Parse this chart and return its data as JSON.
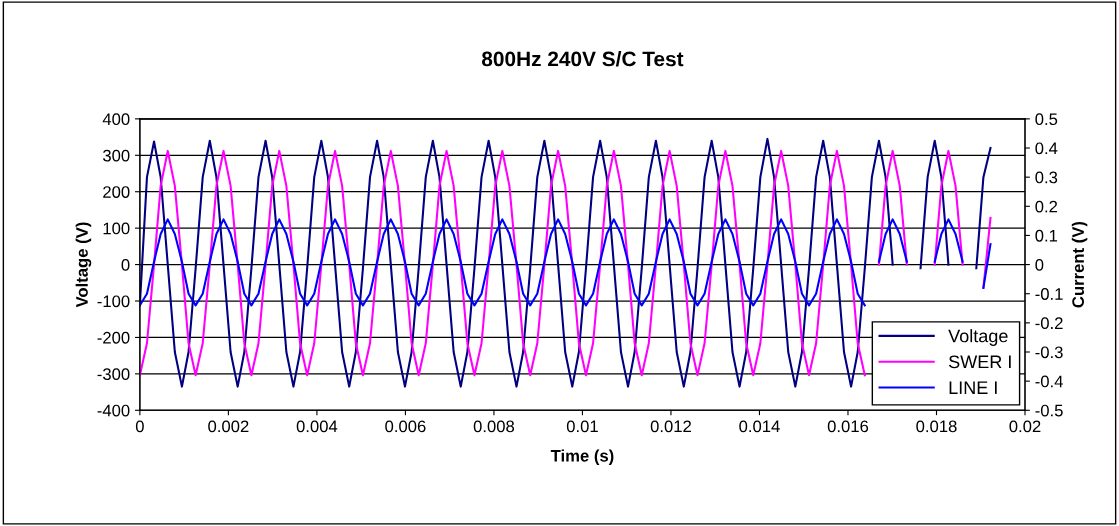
{
  "chart_data": {
    "type": "line",
    "title": "800Hz 240V S/C Test",
    "xlabel": "Time (s)",
    "ylabel": "Voltage (V)",
    "y2label": "Current (V)",
    "x": [
      0,
      0.00016,
      0.00032,
      0.00047,
      0.00063,
      0.00079,
      0.00095,
      0.0011,
      0.00126,
      0.00142,
      0.00158,
      0.00173,
      0.00189,
      0.00205,
      0.00221,
      0.00236,
      0.00252,
      0.00268,
      0.00284,
      0.00299,
      0.00315,
      0.00331,
      0.00347,
      0.00362,
      0.00378,
      0.00394,
      0.0041,
      0.00425,
      0.00441,
      0.00457,
      0.00473,
      0.00488,
      0.00504,
      0.0052,
      0.00536,
      0.00551,
      0.00567,
      0.00583,
      0.00599,
      0.00614,
      0.0063,
      0.00646,
      0.00662,
      0.00677,
      0.00693,
      0.00709,
      0.00725,
      0.0074,
      0.00756,
      0.00772,
      0.00788,
      0.00803,
      0.00819,
      0.00835,
      0.00851,
      0.00866,
      0.00882,
      0.00898,
      0.00914,
      0.00929,
      0.00945,
      0.00961,
      0.00977,
      0.00992,
      0.01008,
      0.01024,
      0.0104,
      0.01055,
      0.01071,
      0.01087,
      0.01103,
      0.01118,
      0.01134,
      0.0115,
      0.01166,
      0.01181,
      0.01197,
      0.01213,
      0.01229,
      0.01244,
      0.0126,
      0.01276,
      0.01292,
      0.01307,
      0.01323,
      0.01339,
      0.01355,
      0.0137,
      0.01386,
      0.01402,
      0.01418,
      0.01433,
      0.01449,
      0.01465,
      0.01481,
      0.01496,
      0.01512,
      0.01528,
      0.01544,
      0.01559,
      0.01575,
      0.01591,
      0.01607,
      0.01622,
      0.01638,
      0.01654,
      0.0167,
      0.01685,
      0.01701,
      0.01717,
      0.01733,
      0.01748,
      0.01764,
      0.0178,
      0.01796,
      0.01811,
      0.01827,
      0.01843,
      0.01859,
      0.01874,
      0.0189,
      0.01906,
      0.01922
    ],
    "series": [
      {
        "name": "Voltage",
        "color": "#000080",
        "values": [
          -110,
          240,
          338,
          240,
          0,
          -240,
          -335,
          -240,
          -10,
          240,
          340,
          240,
          0,
          -240,
          -335,
          -240,
          -10,
          240,
          340,
          240,
          0,
          -240,
          -335,
          -240,
          -10,
          240,
          340,
          240,
          0,
          -240,
          -335,
          -240,
          -10,
          240,
          340,
          240,
          0,
          -240,
          -335,
          -240,
          -10,
          240,
          340,
          240,
          0,
          -240,
          -335,
          -240,
          -10,
          240,
          340,
          240,
          0,
          -240,
          -335,
          -240,
          -10,
          240,
          340,
          240,
          0,
          -240,
          -335,
          -240,
          -10,
          240,
          340,
          240,
          0,
          -240,
          -335,
          -240,
          -10,
          240,
          340,
          240,
          0,
          -240,
          -335,
          -240,
          -10,
          240,
          340,
          240,
          0,
          -240,
          -335,
          -240,
          -10,
          240,
          345,
          240,
          0,
          -240,
          -335,
          -240,
          -10,
          240,
          340,
          240,
          0,
          -240,
          -335,
          -240,
          -10,
          240,
          340,
          240,
          0,
          null,
          null,
          null,
          -10,
          240,
          340,
          240,
          0,
          null,
          null,
          null,
          -10,
          240,
          320
        ]
      },
      {
        "name": "SWER I",
        "color": "#ff00ff",
        "axis": "y2",
        "values": [
          -0.38,
          -0.27,
          0,
          0.27,
          0.39,
          0.27,
          0,
          -0.27,
          -0.38,
          -0.27,
          0,
          0.27,
          0.39,
          0.27,
          0,
          -0.27,
          -0.38,
          -0.27,
          0,
          0.27,
          0.39,
          0.27,
          0,
          -0.27,
          -0.38,
          -0.27,
          0,
          0.27,
          0.39,
          0.27,
          0,
          -0.27,
          -0.38,
          -0.27,
          0,
          0.27,
          0.39,
          0.27,
          0,
          -0.27,
          -0.38,
          -0.27,
          0,
          0.27,
          0.39,
          0.27,
          0,
          -0.27,
          -0.38,
          -0.27,
          0,
          0.27,
          0.39,
          0.27,
          0,
          -0.27,
          -0.38,
          -0.27,
          0,
          0.27,
          0.39,
          0.27,
          0,
          -0.27,
          -0.38,
          -0.27,
          0,
          0.27,
          0.39,
          0.27,
          0,
          -0.27,
          -0.38,
          -0.27,
          0,
          0.27,
          0.39,
          0.27,
          0,
          -0.27,
          -0.38,
          -0.27,
          0,
          0.27,
          0.39,
          0.27,
          0,
          -0.27,
          -0.38,
          -0.27,
          0,
          0.27,
          0.39,
          0.27,
          0,
          -0.27,
          -0.38,
          -0.27,
          0,
          0.27,
          0.39,
          0.27,
          0,
          -0.27,
          -0.38,
          null,
          0,
          0.27,
          0.39,
          0.27,
          0,
          null,
          null,
          null,
          0,
          0.27,
          0.39,
          0.27,
          0,
          null,
          null,
          -0.08,
          0.16
        ]
      },
      {
        "name": "LINE I",
        "color": "#0000ff",
        "axis": "y2",
        "values": [
          -0.14,
          -0.1,
          0.01,
          0.105,
          0.155,
          0.105,
          0.01,
          -0.1,
          -0.14,
          -0.1,
          0.01,
          0.105,
          0.155,
          0.105,
          0.01,
          -0.1,
          -0.14,
          -0.1,
          0.01,
          0.105,
          0.155,
          0.105,
          0.01,
          -0.1,
          -0.14,
          -0.1,
          0.01,
          0.105,
          0.155,
          0.105,
          0.01,
          -0.1,
          -0.14,
          -0.1,
          0.01,
          0.105,
          0.155,
          0.105,
          0.01,
          -0.1,
          -0.14,
          -0.1,
          0.01,
          0.105,
          0.155,
          0.105,
          0.01,
          -0.1,
          -0.14,
          -0.1,
          0.01,
          0.105,
          0.155,
          0.105,
          0.01,
          -0.1,
          -0.14,
          -0.1,
          0.01,
          0.105,
          0.155,
          0.105,
          0.01,
          -0.1,
          -0.14,
          -0.1,
          0.01,
          0.105,
          0.155,
          0.105,
          0.01,
          -0.1,
          -0.14,
          -0.1,
          0.01,
          0.105,
          0.155,
          0.105,
          0.01,
          -0.1,
          -0.14,
          -0.1,
          0.01,
          0.105,
          0.155,
          0.105,
          0.01,
          -0.1,
          -0.14,
          -0.1,
          0.01,
          0.105,
          0.155,
          0.105,
          0.01,
          -0.1,
          -0.14,
          -0.1,
          0.01,
          0.105,
          0.155,
          0.105,
          0.01,
          -0.1,
          -0.14,
          null,
          0.01,
          0.105,
          0.155,
          0.105,
          0.01,
          null,
          null,
          null,
          0.01,
          0.105,
          0.155,
          0.105,
          0.01,
          null,
          null,
          -0.08,
          0.07
        ]
      }
    ],
    "xlim": [
      0,
      0.02
    ],
    "xticks": [
      0,
      0.002,
      0.004,
      0.006,
      0.008,
      0.01,
      0.012,
      0.014,
      0.016,
      0.018,
      0.02
    ],
    "ylim": [
      -400,
      400
    ],
    "yticks": [
      -400,
      -300,
      -200,
      -100,
      0,
      100,
      200,
      300,
      400
    ],
    "y2lim": [
      -0.5,
      0.5
    ],
    "y2ticks": [
      -0.5,
      -0.4,
      -0.3,
      -0.2,
      -0.1,
      0,
      0.1,
      0.2,
      0.3,
      0.4,
      0.5
    ],
    "grid": "y",
    "legend": "bottom right",
    "marker": "none",
    "line_style": "solid"
  }
}
